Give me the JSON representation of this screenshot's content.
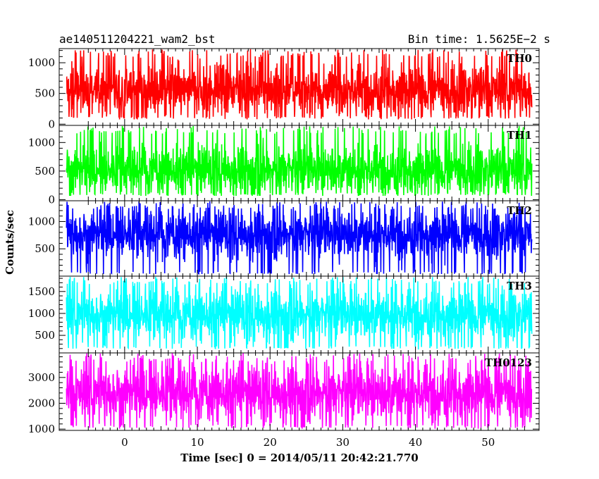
{
  "chart_data": {
    "type": "line",
    "title_left": "ae140511204221_wam2_bst",
    "title_right": "Bin time: 1.5625E−2 s",
    "xlabel": "Time [sec] 0 = 2014/05/11 20:42:21.770",
    "ylabel": "Counts/sec",
    "xlim": [
      -9,
      57
    ],
    "x_data_range": [
      -8,
      56
    ],
    "xticks": [
      0,
      10,
      20,
      30,
      40,
      50
    ],
    "grid": false,
    "panels": [
      {
        "name": "TH0",
        "color": "#ff0000",
        "ylim": [
          -20,
          1230
        ],
        "yticks": [
          0,
          500,
          1000
        ],
        "base": 130,
        "center": 560,
        "spread": 520,
        "top": 1220
      },
      {
        "name": "TH1",
        "color": "#00ff00",
        "ylim": [
          -20,
          1300
        ],
        "yticks": [
          0,
          500,
          1000
        ],
        "base": 120,
        "center": 520,
        "spread": 540,
        "top": 1290
      },
      {
        "name": "TH2",
        "color": "#0000ff",
        "ylim": [
          0,
          1380
        ],
        "yticks": [
          500,
          1000
        ],
        "base": 80,
        "center": 770,
        "spread": 560,
        "top": 1370
      },
      {
        "name": "TH3",
        "color": "#00ffff",
        "ylim": [
          100,
          1850
        ],
        "yticks": [
          500,
          1000,
          1500
        ],
        "base": 250,
        "center": 970,
        "spread": 720,
        "top": 1840
      },
      {
        "name": "TH0123",
        "color": "#ff00ff",
        "ylim": [
          950,
          3950
        ],
        "yticks": [
          1000,
          2000,
          3000
        ],
        "base": 1150,
        "center": 2400,
        "spread": 1350,
        "top": 3940
      }
    ]
  }
}
